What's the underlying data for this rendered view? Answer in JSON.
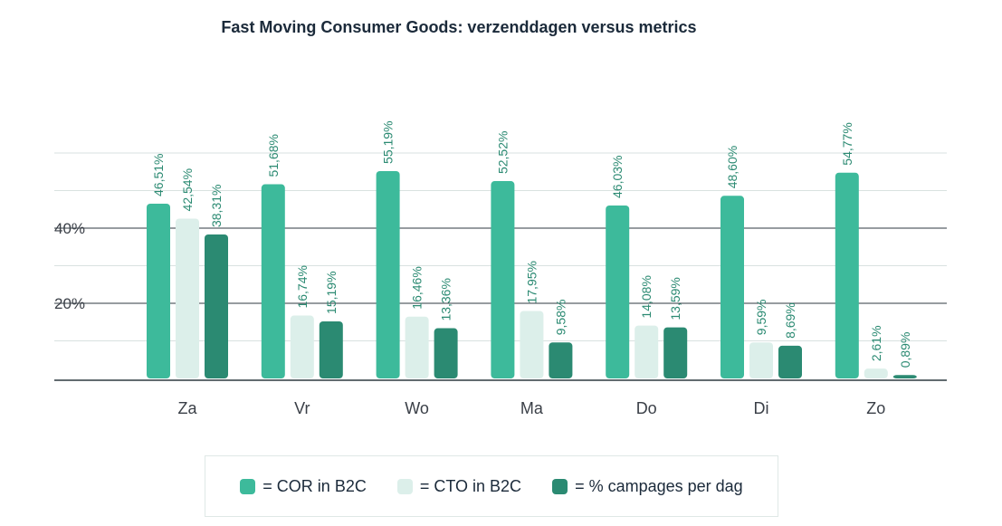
{
  "chart_data": {
    "type": "bar",
    "title": "Fast Moving Consumer Goods: verzenddagen versus metrics",
    "categories": [
      "Za",
      "Vr",
      "Wo",
      "Ma",
      "Do",
      "Di",
      "Zo"
    ],
    "series": [
      {
        "name": "COR in B2C",
        "color": "#3dba9b",
        "values": [
          46.51,
          51.68,
          55.19,
          52.52,
          46.03,
          48.6,
          54.77
        ],
        "labels": [
          "46,51%",
          "51,68%",
          "55,19%",
          "52,52%",
          "46,03%",
          "48,60%",
          "54,77%"
        ]
      },
      {
        "name": "CTO in B2C",
        "color": "#dcefea",
        "values": [
          42.54,
          16.74,
          16.46,
          17.95,
          14.08,
          9.59,
          2.61
        ],
        "labels": [
          "42,54%",
          "16,74%",
          "16,46%",
          "17,95%",
          "14,08%",
          "9,59%",
          "2,61%"
        ]
      },
      {
        "name": "% campages per dag",
        "color": "#2b8a72",
        "values": [
          38.31,
          15.19,
          13.36,
          9.58,
          13.59,
          8.69,
          0.89
        ],
        "labels": [
          "38,31%",
          "15,19%",
          "13,36%",
          "9,58%",
          "13,59%",
          "8,69%",
          "0,89%"
        ]
      }
    ],
    "yticks": [
      {
        "value": 20,
        "label": "20%"
      },
      {
        "value": 40,
        "label": "40%"
      }
    ],
    "grid_major": [
      20,
      40
    ],
    "grid_minor": [
      10,
      30,
      50,
      60
    ],
    "ylim": [
      0,
      65
    ],
    "legend_position": "bottom"
  },
  "legend": {
    "items": [
      {
        "label": "= COR in B2C",
        "color": "#3dba9b"
      },
      {
        "label": "= CTO in B2C",
        "color": "#dcefea"
      },
      {
        "label": "= % campages per dag",
        "color": "#2b8a72"
      }
    ]
  }
}
